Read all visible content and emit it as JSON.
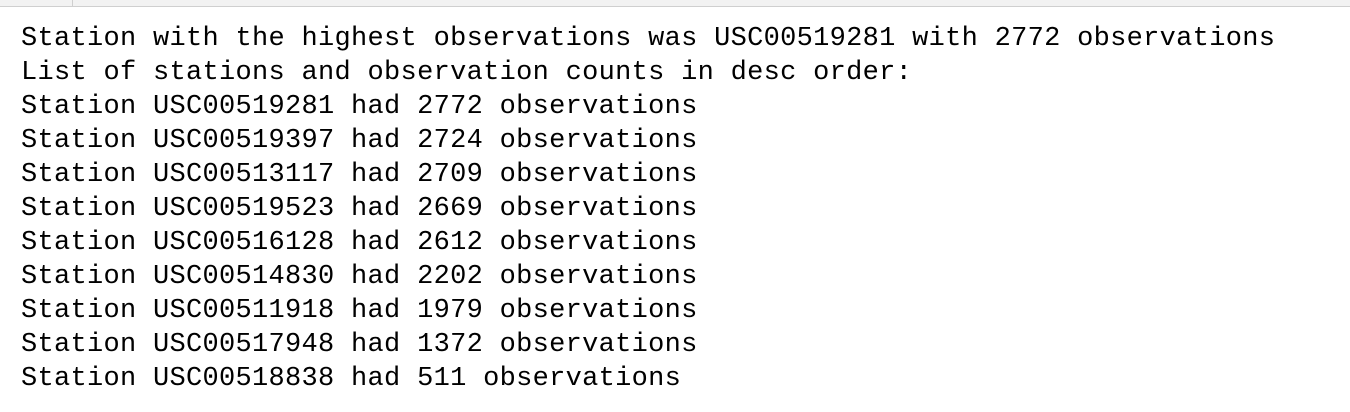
{
  "output": {
    "summary_line": "Station with the highest observations was USC00519281 with 2772 observations",
    "list_header": "List of stations and observation counts in desc order:",
    "lines": [
      "Station USC00519281 had 2772 observations",
      "Station USC00519397 had 2724 observations",
      "Station USC00513117 had 2709 observations",
      "Station USC00519523 had 2669 observations",
      "Station USC00516128 had 2612 observations",
      "Station USC00514830 had 2202 observations",
      "Station USC00511918 had 1979 observations",
      "Station USC00517948 had 1372 observations",
      "Station USC00518838 had 511 observations"
    ]
  }
}
